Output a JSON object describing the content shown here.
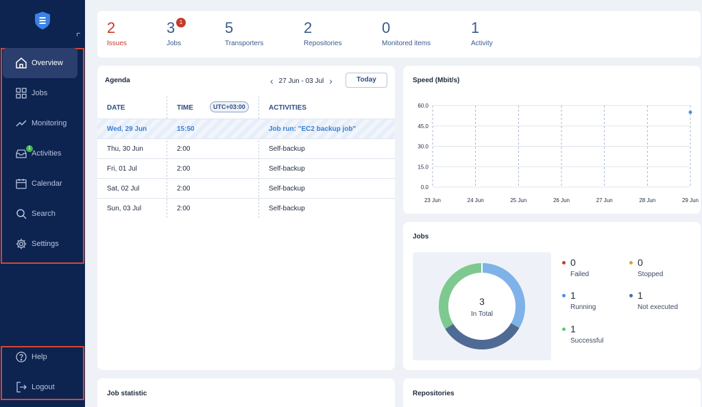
{
  "sidebar": {
    "items": [
      {
        "label": "Overview",
        "icon": "home-icon"
      },
      {
        "label": "Jobs",
        "icon": "grid-icon"
      },
      {
        "label": "Monitoring",
        "icon": "trend-icon"
      },
      {
        "label": "Activities",
        "icon": "inbox-icon",
        "badge": "1"
      },
      {
        "label": "Calendar",
        "icon": "calendar-icon"
      },
      {
        "label": "Search",
        "icon": "search-icon"
      },
      {
        "label": "Settings",
        "icon": "gear-icon"
      }
    ],
    "bottom": [
      {
        "label": "Help",
        "icon": "help-icon"
      },
      {
        "label": "Logout",
        "icon": "logout-icon"
      }
    ]
  },
  "stats": [
    {
      "value": "2",
      "label": "Issues"
    },
    {
      "value": "3",
      "label": "Jobs",
      "badge": "1"
    },
    {
      "value": "5",
      "label": "Transporters"
    },
    {
      "value": "2",
      "label": "Repositories"
    },
    {
      "value": "0",
      "label": "Monitored items"
    },
    {
      "value": "1",
      "label": "Activity"
    }
  ],
  "agenda": {
    "title": "Agenda",
    "range": "27 Jun - 03 Jul",
    "today_label": "Today",
    "headers": {
      "date": "DATE",
      "time": "TIME",
      "utc": "UTC+03:00",
      "activities": "ACTIVITIES"
    },
    "rows": [
      {
        "date": "Wed, 29 Jun",
        "time": "15:50",
        "activity": "Job run: \"EC2 backup job\""
      },
      {
        "date": "Thu, 30 Jun",
        "time": "2:00",
        "activity": "Self-backup"
      },
      {
        "date": "Fri, 01 Jul",
        "time": "2:00",
        "activity": "Self-backup"
      },
      {
        "date": "Sat, 02 Jul",
        "time": "2:00",
        "activity": "Self-backup"
      },
      {
        "date": "Sun, 03 Jul",
        "time": "2:00",
        "activity": "Self-backup"
      }
    ]
  },
  "speed": {
    "title": "Speed (Mbit/s)"
  },
  "chart_data": {
    "type": "line",
    "title": "Speed (Mbit/s)",
    "x": [
      "23 Jun",
      "24 Jun",
      "25 Jun",
      "26 Jun",
      "27 Jun",
      "28 Jun",
      "29 Jun"
    ],
    "y_ticks": [
      "60.0",
      "45.0",
      "30.0",
      "15.0",
      "0.0"
    ],
    "ylim": [
      0,
      60
    ],
    "series": [
      {
        "points": [
          {
            "x": "29 Jun",
            "y": 55
          }
        ]
      }
    ],
    "grid": true
  },
  "jobs": {
    "title": "Jobs",
    "total": "3",
    "total_label": "In Total",
    "legend": [
      {
        "value": "0",
        "label": "Failed",
        "color": "#c53a2b"
      },
      {
        "value": "0",
        "label": "Stopped",
        "color": "#d4a72c"
      },
      {
        "value": "1",
        "label": "Running",
        "color": "#4a90e2"
      },
      {
        "value": "1",
        "label": "Not executed",
        "color": "#4f6a94"
      },
      {
        "value": "1",
        "label": "Successful",
        "color": "#5cc874"
      }
    ]
  },
  "bottom_cards": {
    "job_statistic": "Job statistic",
    "repositories": "Repositories"
  }
}
